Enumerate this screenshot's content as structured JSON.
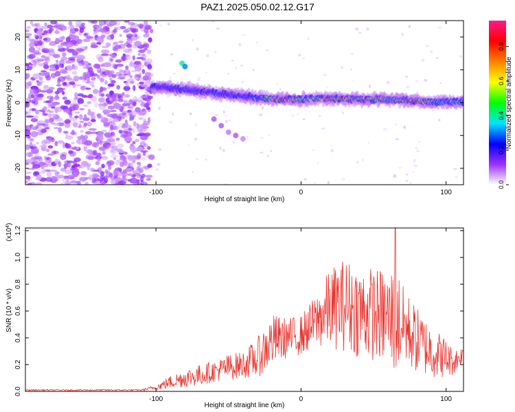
{
  "title": "PAZ1.2025.050.02.12.G17",
  "chart_data": [
    {
      "type": "heatmap",
      "xlabel": "Height of straight line (km)",
      "ylabel": "Frequency (Hz)",
      "xlim": [
        -190,
        112
      ],
      "ylim": [
        -25,
        25
      ],
      "x_ticks": [
        -100,
        0,
        100
      ],
      "y_ticks": [
        20,
        10,
        0,
        -10,
        -20
      ],
      "colorbar": {
        "label": "Normalized spectral amplitude",
        "range": [
          0,
          0.95
        ],
        "ticks": [
          "0.0",
          "0.2",
          "0.4",
          "0.6",
          "0.8"
        ],
        "colormap": [
          "#ffffff",
          "#9b30ff",
          "#0000ff",
          "#00e5ff",
          "#00ff00",
          "#ffff00",
          "#ff8000",
          "#ff0000",
          "#ff1a8c"
        ]
      },
      "description_of_structure": {
        "noise_region_x": [
          -190,
          -103
        ],
        "tone_ridge": {
          "x": [
            -103,
            -90,
            -80,
            -70,
            -60,
            -50,
            -40,
            -30,
            -20,
            -10,
            0,
            10,
            20,
            30,
            40,
            50,
            60,
            70,
            80,
            90,
            100,
            112
          ],
          "freq_hz": [
            5,
            4.5,
            4,
            3.5,
            3,
            2.5,
            2,
            1.5,
            1.2,
            1,
            1,
            1.2,
            1.2,
            1.2,
            1,
            1,
            1,
            0.8,
            0.5,
            0.3,
            0.3,
            0.2
          ],
          "peak_amplitude": [
            0.25,
            0.25,
            0.3,
            0.25,
            0.3,
            0.3,
            0.3,
            0.35,
            0.7,
            0.95,
            0.6,
            0.7,
            0.9,
            0.85,
            0.9,
            0.85,
            0.6,
            0.8,
            0.95,
            0.6,
            0.5,
            0.45
          ]
        }
      }
    },
    {
      "type": "line",
      "xlabel": "Height of straight line (km)",
      "ylabel": "SNR (10 * v/v)",
      "y_multiplier": "(x10",
      "y_multiplier_exp": "4",
      "xlim": [
        -190,
        112
      ],
      "ylim": [
        0,
        1.22
      ],
      "x_ticks": [
        -100,
        0,
        100
      ],
      "y_ticks": [
        "0.0",
        "0.2",
        "0.4",
        "0.6",
        "0.8",
        "1.0",
        "1.2"
      ],
      "series": [
        {
          "color": "#e8302a",
          "x": [
            -190,
            -150,
            -110,
            -100,
            -90,
            -80,
            -70,
            -60,
            -50,
            -40,
            -30,
            -20,
            -10,
            0,
            10,
            20,
            30,
            40,
            50,
            60,
            65,
            70,
            80,
            90,
            100,
            105,
            112
          ],
          "mean": [
            0.01,
            0.01,
            0.01,
            0.03,
            0.07,
            0.1,
            0.12,
            0.15,
            0.18,
            0.2,
            0.25,
            0.38,
            0.4,
            0.42,
            0.52,
            0.62,
            0.65,
            0.6,
            0.58,
            0.55,
            0.55,
            0.5,
            0.38,
            0.3,
            0.25,
            0.22,
            0.28
          ],
          "spread": [
            0.005,
            0.005,
            0.005,
            0.02,
            0.05,
            0.07,
            0.08,
            0.08,
            0.1,
            0.1,
            0.15,
            0.2,
            0.15,
            0.15,
            0.2,
            0.3,
            0.35,
            0.35,
            0.35,
            0.35,
            0.45,
            0.3,
            0.25,
            0.2,
            0.15,
            0.1,
            0.06
          ],
          "peak": {
            "x": 65,
            "y": 1.22
          }
        }
      ]
    }
  ]
}
